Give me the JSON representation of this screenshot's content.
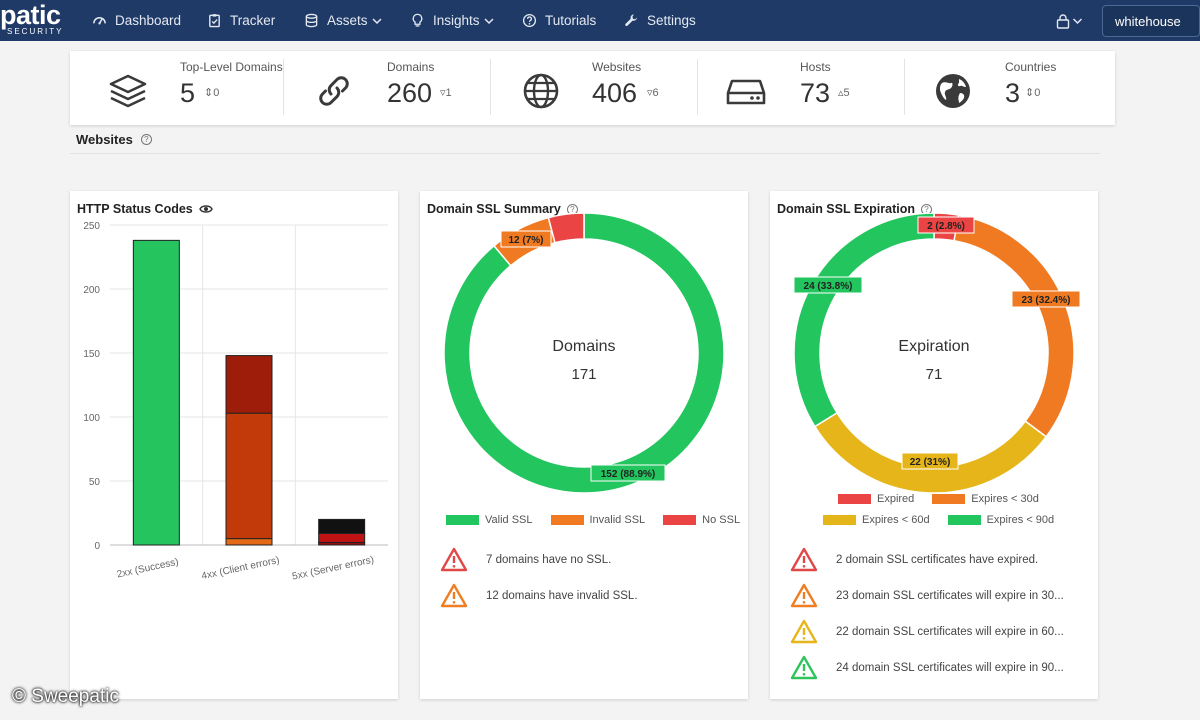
{
  "app": {
    "logo_main": "patic",
    "logo_sub": "SECURITY"
  },
  "nav": {
    "items": [
      {
        "label": "Dashboard",
        "icon": "dashboard-icon"
      },
      {
        "label": "Tracker",
        "icon": "clipboard-icon"
      },
      {
        "label": "Assets",
        "icon": "database-icon",
        "dropdown": true
      },
      {
        "label": "Insights",
        "icon": "lightbulb-icon",
        "dropdown": true
      },
      {
        "label": "Tutorials",
        "icon": "question-icon"
      },
      {
        "label": "Settings",
        "icon": "wrench-icon"
      }
    ],
    "user": "whitehouse"
  },
  "stats": [
    {
      "label": "Top-Level Domains",
      "value": "5",
      "delta": "0",
      "trend": "neutral"
    },
    {
      "label": "Domains",
      "value": "260",
      "delta": "1",
      "trend": "down"
    },
    {
      "label": "Websites",
      "value": "406",
      "delta": "6",
      "trend": "down"
    },
    {
      "label": "Hosts",
      "value": "73",
      "delta": "5",
      "trend": "up"
    },
    {
      "label": "Countries",
      "value": "3",
      "delta": "0",
      "trend": "neutral"
    }
  ],
  "section": {
    "title": "Websites"
  },
  "cards": {
    "http": {
      "title": "HTTP Status Codes"
    },
    "ssl_summary": {
      "title": "Domain SSL Summary",
      "center_label": "Domains",
      "center_value": "171",
      "alerts": [
        {
          "text": "7 domains have no SSL.",
          "color": "#e04848"
        },
        {
          "text": "12 domains have invalid SSL.",
          "color": "#ef7d22"
        }
      ]
    },
    "ssl_expiration": {
      "title": "Domain SSL Expiration",
      "center_label": "Expiration",
      "center_value": "71",
      "alerts": [
        {
          "text": "2 domain SSL certificates have expired.",
          "color": "#e04848"
        },
        {
          "text": "23 domain SSL certificates will expire in 30...",
          "color": "#ef7d22"
        },
        {
          "text": "22 domain SSL certificates will expire in 60...",
          "color": "#e6b51a"
        },
        {
          "text": "24 domain SSL certificates will expire in 90...",
          "color": "#2ec45a"
        }
      ]
    }
  },
  "chart_data": [
    {
      "type": "bar",
      "title": "HTTP Status Codes",
      "categories": [
        "2xx (Success)",
        "4xx (Client errors)",
        "5xx (Server errors)"
      ],
      "ylim": [
        0,
        250
      ],
      "yticks": [
        0,
        50,
        100,
        150,
        200,
        250
      ],
      "stacked": true,
      "series": [
        {
          "values": [
            238,
            5,
            2
          ],
          "color": "#22c55e"
        },
        {
          "values": [
            0,
            98,
            7
          ],
          "color": "#c2410c"
        },
        {
          "values": [
            0,
            45,
            11
          ],
          "color": "#9a1b0a"
        }
      ],
      "series_colors_by_category": [
        [
          "#25c45e"
        ],
        [
          "#e36a17",
          "#c23a0a",
          "#9e1c0a"
        ],
        [
          "#8f0e0e",
          "#c01212",
          "#111111"
        ]
      ],
      "grid": true
    },
    {
      "type": "pie",
      "title": "Domain SSL Summary",
      "donut": true,
      "slices": [
        {
          "label": "Valid SSL",
          "value": 152,
          "display": "152 (88.9%)",
          "color": "#22c55e"
        },
        {
          "label": "Invalid SSL",
          "value": 12,
          "display": "12 (7%)",
          "color": "#f07a21"
        },
        {
          "label": "No SSL",
          "value": 7,
          "display": "",
          "color": "#ea4444"
        }
      ],
      "legend": "bottom"
    },
    {
      "type": "pie",
      "title": "Domain SSL Expiration",
      "donut": true,
      "slices": [
        {
          "label": "Expired",
          "value": 2,
          "display": "2 (2.8%)",
          "color": "#ea4444"
        },
        {
          "label": "Expires < 30d",
          "value": 23,
          "display": "23 (32.4%)",
          "color": "#f07a21"
        },
        {
          "label": "Expires < 60d",
          "value": 22,
          "display": "22 (31%)",
          "color": "#e6b51a"
        },
        {
          "label": "Expires < 90d",
          "value": 24,
          "display": "24 (33.8%)",
          "color": "#22c55e"
        }
      ],
      "legend": "bottom"
    }
  ],
  "watermark": "© Sweepatic"
}
